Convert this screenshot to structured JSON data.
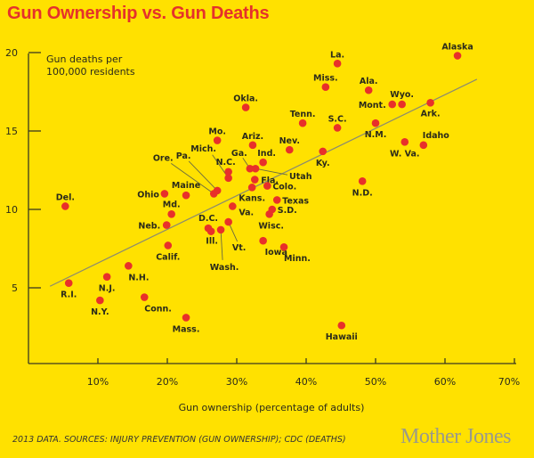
{
  "title": "Gun Ownership vs. Gun Deaths",
  "source": "2013 DATA. SOURCES: INJURY PREVENTION (GUN OWNERSHIP); CDC (DEATHS)",
  "logo": "Mother Jones",
  "colors": {
    "background": "#ffe100",
    "title": "#e5312b",
    "point": "#e8302a",
    "trendline": "#8a8a70"
  },
  "chart_data": {
    "type": "scatter",
    "title": "Gun Ownership vs. Gun Deaths",
    "xlabel": "Gun ownership (percentage of adults)",
    "ylabel": "Gun deaths per 100,000 residents",
    "ylabel_lines": [
      "Gun deaths per",
      "100,000 residents"
    ],
    "xlim": [
      0,
      70
    ],
    "ylim": [
      0,
      20
    ],
    "xticks": [
      "10%",
      "20%",
      "30%",
      "40%",
      "50%",
      "60%",
      "70%"
    ],
    "xtick_values": [
      10,
      20,
      30,
      40,
      50,
      60,
      70
    ],
    "yticks": [
      "5",
      "10",
      "15",
      "20"
    ],
    "ytick_values": [
      5,
      10,
      15,
      20
    ],
    "grid": false,
    "trendline": {
      "x": [
        3.1,
        64.6
      ],
      "y": [
        5.1,
        18.3
      ]
    },
    "points": [
      {
        "label": "Alaska",
        "x": 61.8,
        "y": 19.8
      },
      {
        "label": "La.",
        "x": 44.5,
        "y": 19.3
      },
      {
        "label": "Miss.",
        "x": 42.8,
        "y": 17.8
      },
      {
        "label": "Ala.",
        "x": 49.0,
        "y": 17.6
      },
      {
        "label": "Mont.",
        "x": 52.4,
        "y": 16.7
      },
      {
        "label": "Wyo.",
        "x": 53.8,
        "y": 16.7
      },
      {
        "label": "Ark.",
        "x": 57.9,
        "y": 16.8
      },
      {
        "label": "Okla.",
        "x": 31.3,
        "y": 16.5
      },
      {
        "label": "Tenn.",
        "x": 39.5,
        "y": 15.5
      },
      {
        "label": "S.C.",
        "x": 44.5,
        "y": 15.2
      },
      {
        "label": "N.M.",
        "x": 50.0,
        "y": 15.5
      },
      {
        "label": "Idaho",
        "x": 56.9,
        "y": 14.1
      },
      {
        "label": "W. Va.",
        "x": 54.2,
        "y": 14.3
      },
      {
        "label": "Mo.",
        "x": 27.2,
        "y": 14.4
      },
      {
        "label": "Ariz.",
        "x": 32.3,
        "y": 14.1
      },
      {
        "label": "Nev.",
        "x": 37.6,
        "y": 13.8
      },
      {
        "label": "Ky.",
        "x": 42.4,
        "y": 13.7
      },
      {
        "label": "Ind.",
        "x": 33.8,
        "y": 13.0
      },
      {
        "label": "Ga.",
        "x": 31.9,
        "y": 12.6
      },
      {
        "label": "Utah",
        "x": 32.7,
        "y": 12.6
      },
      {
        "label": "N.C.",
        "x": 28.8,
        "y": 12.4
      },
      {
        "label": "Mich.",
        "x": 28.8,
        "y": 12.0
      },
      {
        "label": "Fla.",
        "x": 32.6,
        "y": 11.9
      },
      {
        "label": "Kans.",
        "x": 32.2,
        "y": 11.4
      },
      {
        "label": "Colo.",
        "x": 34.4,
        "y": 11.5
      },
      {
        "label": "Pa.",
        "x": 27.2,
        "y": 11.2
      },
      {
        "label": "Ore.",
        "x": 26.7,
        "y": 11.0
      },
      {
        "label": "Maine",
        "x": 22.7,
        "y": 10.9
      },
      {
        "label": "Ohio",
        "x": 19.6,
        "y": 11.0
      },
      {
        "label": "Del.",
        "x": 5.3,
        "y": 10.2
      },
      {
        "label": "Md.",
        "x": 20.6,
        "y": 9.7
      },
      {
        "label": "Texas",
        "x": 35.8,
        "y": 10.6
      },
      {
        "label": "S.D.",
        "x": 35.1,
        "y": 10.0
      },
      {
        "label": "Wisc.",
        "x": 34.7,
        "y": 9.7
      },
      {
        "label": "Va.",
        "x": 29.4,
        "y": 10.2
      },
      {
        "label": "Neb.",
        "x": 19.9,
        "y": 9.0
      },
      {
        "label": "D.C.",
        "x": 25.9,
        "y": 8.8
      },
      {
        "label": "Ill.",
        "x": 26.3,
        "y": 8.6
      },
      {
        "label": "Wash.",
        "x": 27.7,
        "y": 8.7
      },
      {
        "label": "Vt.",
        "x": 28.8,
        "y": 9.2
      },
      {
        "label": "Iowa",
        "x": 33.8,
        "y": 8.0
      },
      {
        "label": "Minn.",
        "x": 36.8,
        "y": 7.6
      },
      {
        "label": "Calif.",
        "x": 20.1,
        "y": 7.7
      },
      {
        "label": "N.D.",
        "x": 48.1,
        "y": 11.8
      },
      {
        "label": "N.H.",
        "x": 14.4,
        "y": 6.4
      },
      {
        "label": "N.J.",
        "x": 11.3,
        "y": 5.7
      },
      {
        "label": "R.I.",
        "x": 5.8,
        "y": 5.3
      },
      {
        "label": "N.Y.",
        "x": 10.3,
        "y": 4.2
      },
      {
        "label": "Conn.",
        "x": 16.7,
        "y": 4.4
      },
      {
        "label": "Mass.",
        "x": 22.7,
        "y": 3.1
      },
      {
        "label": "Hawaii",
        "x": 45.1,
        "y": 2.6
      }
    ]
  }
}
